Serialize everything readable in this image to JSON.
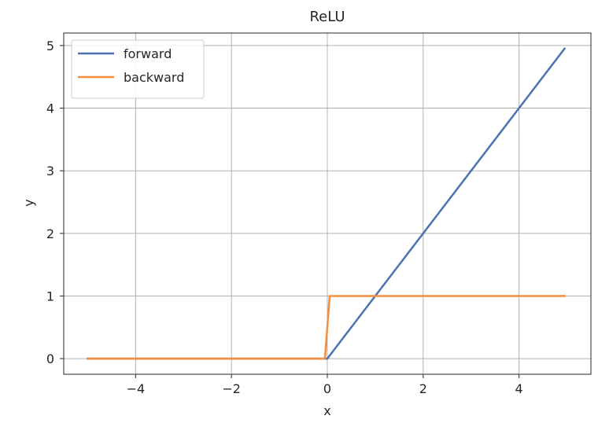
{
  "chart_data": {
    "type": "line",
    "title": "ReLU",
    "xlabel": "x",
    "ylabel": "y",
    "xlim": [
      -5.5,
      5.5
    ],
    "ylim": [
      -0.25,
      5.2
    ],
    "xticks": [
      -4,
      -2,
      0,
      2,
      4
    ],
    "xtick_labels": [
      "−4",
      "−2",
      "0",
      "2",
      "4"
    ],
    "yticks": [
      0,
      1,
      2,
      3,
      4,
      5
    ],
    "ytick_labels": [
      "0",
      "1",
      "2",
      "3",
      "4",
      "5"
    ],
    "grid": true,
    "legend_position": "upper-left",
    "series": [
      {
        "name": "forward",
        "color": "#4c72b0",
        "x": [
          -5,
          0,
          4.95
        ],
        "y": [
          0,
          0,
          4.95
        ]
      },
      {
        "name": "backward",
        "color": "#f28e3c",
        "x": [
          -5,
          -0.05,
          0.05,
          4.95
        ],
        "y": [
          0,
          0,
          1,
          1
        ]
      }
    ]
  }
}
